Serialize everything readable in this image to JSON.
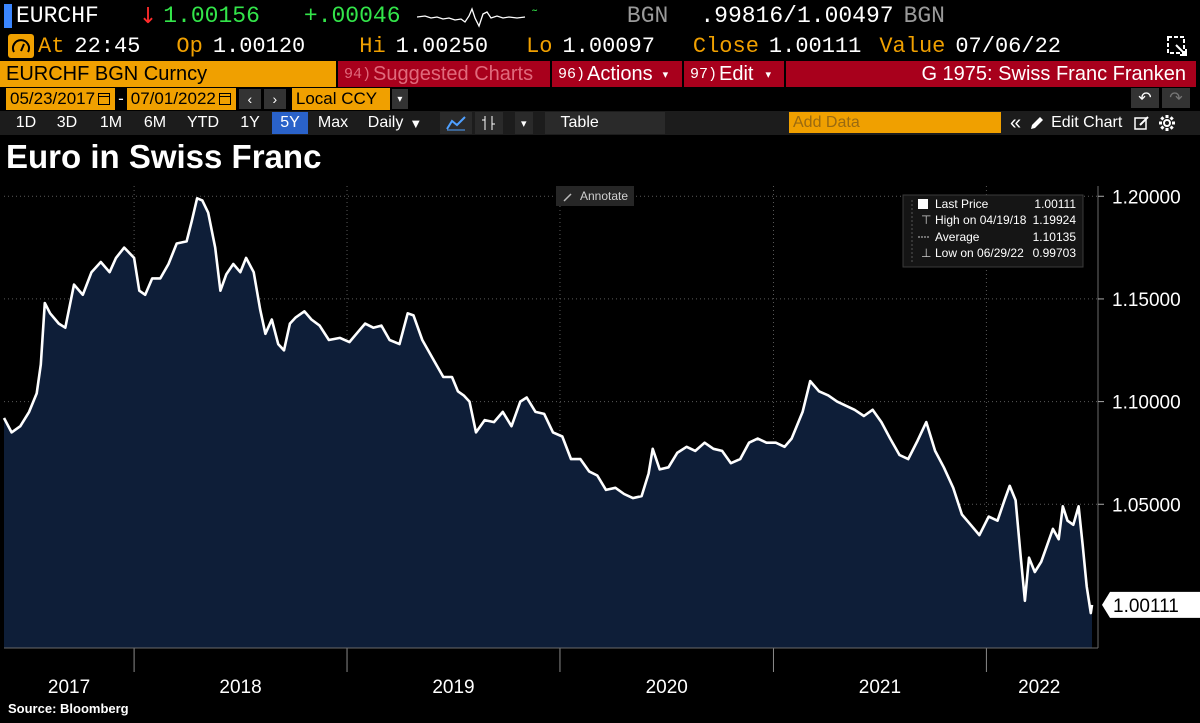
{
  "ticker": {
    "symbol": "EURCHF",
    "direction_arrow": "↓",
    "last": "1.00156",
    "change": "+.00046",
    "source_code": "BGN",
    "bid_ask": ".99816/1.00497",
    "source_code2": "BGN",
    "up_color": "#33e54a",
    "down_color": "#ff2b2b"
  },
  "quote": {
    "at_label": "At",
    "at_value": "22:45",
    "open_label": "Op",
    "open_value": "1.00120",
    "high_label": "Hi",
    "high_value": "1.00250",
    "low_label": "Lo",
    "low_value": "1.00097",
    "close_label": "Close",
    "close_value": "1.00111",
    "value_label": "Value",
    "value_date": "07/06/22"
  },
  "command_bar": {
    "security": "EURCHF BGN Curncy",
    "suggested_num": "94)",
    "suggested_label": "Suggested Charts",
    "actions_num": "96)",
    "actions_label": "Actions",
    "edit_num": "97)",
    "edit_label": "Edit",
    "page_title": "G 1975: Swiss Franc Franken"
  },
  "date_range": {
    "start": "05/23/2017",
    "separator": "-",
    "end": "07/01/2022",
    "currency": "Local CCY"
  },
  "toolbar": {
    "periods": [
      "1D",
      "3D",
      "1M",
      "6M",
      "YTD",
      "1Y",
      "5Y",
      "Max"
    ],
    "active_period": "5Y",
    "frequency": "Daily",
    "table_label": "Table",
    "add_data_placeholder": "Add Data",
    "edit_chart_label": "Edit Chart"
  },
  "annotate_label": "Annotate",
  "legend": {
    "rows": [
      {
        "label": "Last Price",
        "value": "1.00111"
      },
      {
        "label": "High on 04/19/18",
        "value": "1.19924"
      },
      {
        "label": "Average",
        "value": "1.10135"
      },
      {
        "label": "Low on 06/29/22",
        "value": "0.99703"
      }
    ]
  },
  "last_price_tag": "1.00111",
  "source": "Source: Bloomberg",
  "colors": {
    "accent_orange": "#f0a000",
    "bar_red": "#a8001c",
    "area_fill": "#0e1e38",
    "line": "#ffffff",
    "active_blue": "#2a62c9"
  },
  "chart_data": {
    "type": "area",
    "title": "Euro in Swiss Franc",
    "series_name": "EURCHF",
    "x_range": [
      "2017-05-23",
      "2022-07-01"
    ],
    "ylim": [
      0.98,
      1.205
    ],
    "y_ticks": [
      1.2,
      1.15,
      1.1,
      1.05
    ],
    "y_tick_labels": [
      "1.20000",
      "1.15000",
      "1.10000",
      "1.05000"
    ],
    "x_tick_labels": [
      "2017",
      "2018",
      "2019",
      "2020",
      "2021",
      "2022"
    ],
    "x_year_boundaries": [
      "2018-01-01",
      "2019-01-01",
      "2020-01-01",
      "2021-01-01",
      "2022-01-01"
    ],
    "grid": true,
    "points": [
      [
        "2017-05-23",
        1.092
      ],
      [
        "2017-06-05",
        1.085
      ],
      [
        "2017-06-20",
        1.088
      ],
      [
        "2017-07-05",
        1.095
      ],
      [
        "2017-07-18",
        1.104
      ],
      [
        "2017-07-25",
        1.118
      ],
      [
        "2017-08-01",
        1.148
      ],
      [
        "2017-08-10",
        1.143
      ],
      [
        "2017-08-25",
        1.138
      ],
      [
        "2017-09-05",
        1.136
      ],
      [
        "2017-09-20",
        1.157
      ],
      [
        "2017-10-05",
        1.152
      ],
      [
        "2017-10-20",
        1.163
      ],
      [
        "2017-11-05",
        1.168
      ],
      [
        "2017-11-20",
        1.163
      ],
      [
        "2017-12-01",
        1.17
      ],
      [
        "2017-12-15",
        1.175
      ],
      [
        "2018-01-01",
        1.17
      ],
      [
        "2018-01-10",
        1.154
      ],
      [
        "2018-01-20",
        1.152
      ],
      [
        "2018-02-01",
        1.16
      ],
      [
        "2018-02-15",
        1.16
      ],
      [
        "2018-03-01",
        1.167
      ],
      [
        "2018-03-15",
        1.177
      ],
      [
        "2018-04-01",
        1.178
      ],
      [
        "2018-04-10",
        1.188
      ],
      [
        "2018-04-19",
        1.199
      ],
      [
        "2018-04-28",
        1.198
      ],
      [
        "2018-05-08",
        1.192
      ],
      [
        "2018-05-20",
        1.175
      ],
      [
        "2018-05-29",
        1.154
      ],
      [
        "2018-06-08",
        1.162
      ],
      [
        "2018-06-20",
        1.167
      ],
      [
        "2018-07-02",
        1.163
      ],
      [
        "2018-07-12",
        1.17
      ],
      [
        "2018-07-25",
        1.163
      ],
      [
        "2018-08-05",
        1.145
      ],
      [
        "2018-08-14",
        1.133
      ],
      [
        "2018-08-25",
        1.14
      ],
      [
        "2018-09-05",
        1.128
      ],
      [
        "2018-09-15",
        1.125
      ],
      [
        "2018-09-25",
        1.138
      ],
      [
        "2018-10-05",
        1.141
      ],
      [
        "2018-10-20",
        1.144
      ],
      [
        "2018-11-01",
        1.14
      ],
      [
        "2018-11-15",
        1.137
      ],
      [
        "2018-12-01",
        1.13
      ],
      [
        "2018-12-20",
        1.131
      ],
      [
        "2019-01-05",
        1.129
      ],
      [
        "2019-01-20",
        1.134
      ],
      [
        "2019-02-01",
        1.138
      ],
      [
        "2019-02-15",
        1.136
      ],
      [
        "2019-03-01",
        1.137
      ],
      [
        "2019-03-15",
        1.13
      ],
      [
        "2019-04-01",
        1.128
      ],
      [
        "2019-04-15",
        1.143
      ],
      [
        "2019-04-25",
        1.142
      ],
      [
        "2019-05-10",
        1.13
      ],
      [
        "2019-05-30",
        1.12
      ],
      [
        "2019-06-15",
        1.112
      ],
      [
        "2019-06-30",
        1.112
      ],
      [
        "2019-07-10",
        1.105
      ],
      [
        "2019-07-20",
        1.103
      ],
      [
        "2019-07-30",
        1.1
      ],
      [
        "2019-08-10",
        1.085
      ],
      [
        "2019-08-25",
        1.091
      ],
      [
        "2019-09-10",
        1.09
      ],
      [
        "2019-09-25",
        1.095
      ],
      [
        "2019-10-10",
        1.088
      ],
      [
        "2019-10-25",
        1.1
      ],
      [
        "2019-11-05",
        1.102
      ],
      [
        "2019-11-20",
        1.095
      ],
      [
        "2019-12-05",
        1.094
      ],
      [
        "2019-12-20",
        1.085
      ],
      [
        "2020-01-05",
        1.083
      ],
      [
        "2020-01-20",
        1.072
      ],
      [
        "2020-02-05",
        1.072
      ],
      [
        "2020-02-20",
        1.066
      ],
      [
        "2020-03-05",
        1.064
      ],
      [
        "2020-03-20",
        1.057
      ],
      [
        "2020-04-05",
        1.058
      ],
      [
        "2020-04-20",
        1.055
      ],
      [
        "2020-05-05",
        1.053
      ],
      [
        "2020-05-20",
        1.054
      ],
      [
        "2020-06-01",
        1.065
      ],
      [
        "2020-06-08",
        1.077
      ],
      [
        "2020-06-20",
        1.067
      ],
      [
        "2020-07-05",
        1.068
      ],
      [
        "2020-07-20",
        1.075
      ],
      [
        "2020-08-05",
        1.078
      ],
      [
        "2020-08-20",
        1.076
      ],
      [
        "2020-09-05",
        1.08
      ],
      [
        "2020-09-20",
        1.077
      ],
      [
        "2020-10-05",
        1.076
      ],
      [
        "2020-10-20",
        1.07
      ],
      [
        "2020-11-05",
        1.072
      ],
      [
        "2020-11-20",
        1.08
      ],
      [
        "2020-12-05",
        1.082
      ],
      [
        "2020-12-20",
        1.08
      ],
      [
        "2021-01-05",
        1.08
      ],
      [
        "2021-01-20",
        1.078
      ],
      [
        "2021-02-01",
        1.082
      ],
      [
        "2021-02-20",
        1.095
      ],
      [
        "2021-03-05",
        1.11
      ],
      [
        "2021-03-20",
        1.105
      ],
      [
        "2021-04-05",
        1.103
      ],
      [
        "2021-04-20",
        1.1
      ],
      [
        "2021-05-05",
        1.098
      ],
      [
        "2021-05-20",
        1.096
      ],
      [
        "2021-06-05",
        1.093
      ],
      [
        "2021-06-20",
        1.096
      ],
      [
        "2021-07-05",
        1.09
      ],
      [
        "2021-07-20",
        1.082
      ],
      [
        "2021-08-05",
        1.074
      ],
      [
        "2021-08-20",
        1.072
      ],
      [
        "2021-09-05",
        1.081
      ],
      [
        "2021-09-20",
        1.09
      ],
      [
        "2021-10-05",
        1.076
      ],
      [
        "2021-10-20",
        1.068
      ],
      [
        "2021-11-05",
        1.058
      ],
      [
        "2021-11-20",
        1.045
      ],
      [
        "2021-12-05",
        1.04
      ],
      [
        "2021-12-20",
        1.035
      ],
      [
        "2022-01-05",
        1.044
      ],
      [
        "2022-01-20",
        1.042
      ],
      [
        "2022-02-01",
        1.052
      ],
      [
        "2022-02-10",
        1.059
      ],
      [
        "2022-02-20",
        1.052
      ],
      [
        "2022-03-01",
        1.024
      ],
      [
        "2022-03-08",
        1.003
      ],
      [
        "2022-03-15",
        1.024
      ],
      [
        "2022-03-25",
        1.017
      ],
      [
        "2022-04-05",
        1.022
      ],
      [
        "2022-04-15",
        1.03
      ],
      [
        "2022-04-25",
        1.038
      ],
      [
        "2022-05-05",
        1.033
      ],
      [
        "2022-05-12",
        1.049
      ],
      [
        "2022-05-20",
        1.042
      ],
      [
        "2022-05-30",
        1.04
      ],
      [
        "2022-06-08",
        1.049
      ],
      [
        "2022-06-15",
        1.03
      ],
      [
        "2022-06-22",
        1.01
      ],
      [
        "2022-06-29",
        0.997
      ],
      [
        "2022-07-01",
        1.001
      ]
    ]
  }
}
